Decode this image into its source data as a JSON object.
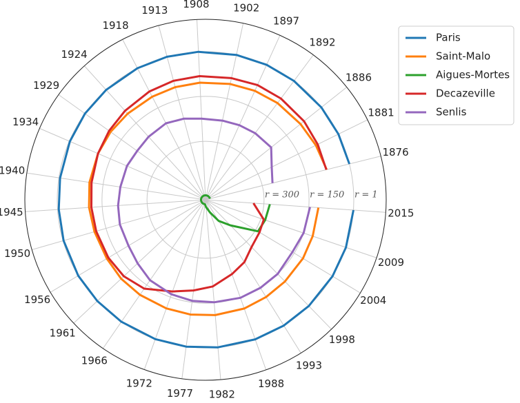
{
  "chart_data": {
    "type": "polar-line",
    "x": [
      1876,
      1881,
      1886,
      1892,
      1897,
      1902,
      1908,
      1913,
      1918,
      1924,
      1929,
      1934,
      1940,
      1945,
      1950,
      1956,
      1961,
      1966,
      1972,
      1977,
      1982,
      1988,
      1993,
      1998,
      2004,
      2009,
      2015
    ],
    "xticks": [
      1876,
      1881,
      1886,
      1892,
      1897,
      1902,
      1908,
      1913,
      1918,
      1924,
      1929,
      1934,
      1940,
      1945,
      1950,
      1956,
      1961,
      1966,
      1972,
      1977,
      1982,
      1988,
      1993,
      1998,
      2004,
      2009,
      2015
    ],
    "rlim": [
      495,
      -107
    ],
    "rticks": [
      {
        "value": 1,
        "label": "r = 1"
      },
      {
        "value": 150,
        "label": "r = 150"
      },
      {
        "value": 300,
        "label": "r = 300"
      }
    ],
    "grid": true,
    "legend": "upper right",
    "series": [
      {
        "name": "Paris",
        "color": "#1f77b4",
        "values": [
          1,
          1,
          1,
          1,
          1,
          1,
          1,
          1,
          1,
          1,
          1,
          3,
          5,
          5,
          3,
          1,
          1,
          1,
          1,
          1,
          1,
          1,
          1,
          1,
          1,
          1,
          1
        ]
      },
      {
        "name": "Saint-Malo",
        "color": "#ff7f0e",
        "values": [
          79,
          85,
          90,
          93,
          96,
          100,
          104,
          106,
          108,
          108,
          106,
          105,
          104,
          106,
          110,
          112,
          110,
          110,
          110,
          109,
          109,
          110,
          113,
          115,
          116,
          118,
          118
        ]
      },
      {
        "name": "Aigues-Mortes",
        "color": "#2ca02c",
        "values": [
          480,
          480,
          480,
          480,
          480,
          480,
          480,
          480,
          480,
          480,
          480,
          480,
          480,
          480,
          480,
          480,
          480,
          480,
          480,
          480,
          470,
          450,
          412,
          376,
          291,
          285,
          280
        ]
      },
      {
        "name": "Decazeville",
        "color": "#d62728",
        "values": [
          80,
          78,
          75,
          74,
          75,
          80,
          82,
          84,
          88,
          95,
          100,
          105,
          111,
          114,
          116,
          118,
          122,
          135,
          170,
          190,
          205,
          232,
          250,
          275,
          285,
          290,
          335
        ]
      },
      {
        "name": "Senlis",
        "color": "#9467bd",
        "values": [
          265,
          249,
          215,
          218,
          222,
          225,
          224,
          215,
          208,
          212,
          215,
          210,
          208,
          203,
          198,
          196,
          185,
          169,
          160,
          155,
          152,
          148,
          149,
          150,
          157,
          150,
          146
        ]
      }
    ]
  }
}
